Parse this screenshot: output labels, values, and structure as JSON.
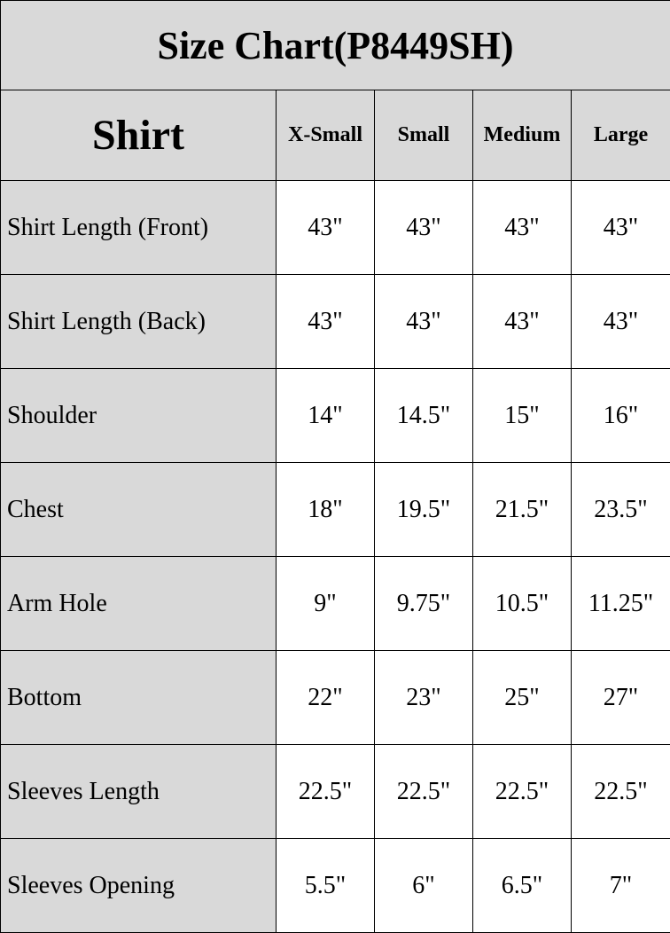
{
  "title": "Size Chart(P8449SH)",
  "header": {
    "category": "Shirt",
    "sizes": [
      "X-Small",
      "Small",
      "Medium",
      "Large"
    ]
  },
  "rows": [
    {
      "label": "Shirt Length (Front)",
      "values": [
        "43\"",
        "43\"",
        "43\"",
        "43\""
      ]
    },
    {
      "label": "Shirt Length (Back)",
      "values": [
        "43\"",
        "43\"",
        "43\"",
        "43\""
      ]
    },
    {
      "label": "Shoulder",
      "values": [
        "14\"",
        "14.5\"",
        "15\"",
        "16\""
      ]
    },
    {
      "label": "Chest",
      "values": [
        "18\"",
        "19.5\"",
        "21.5\"",
        "23.5\""
      ]
    },
    {
      "label": "Arm Hole",
      "values": [
        "9\"",
        "9.75\"",
        "10.5\"",
        "11.25\""
      ]
    },
    {
      "label": "Bottom",
      "values": [
        "22\"",
        "23\"",
        "25\"",
        "27\""
      ]
    },
    {
      "label": "Sleeves Length",
      "values": [
        "22.5\"",
        "22.5\"",
        "22.5\"",
        "22.5\""
      ]
    },
    {
      "label": "Sleeves Opening",
      "values": [
        "5.5\"",
        "6\"",
        "6.5\"",
        "7\""
      ]
    }
  ],
  "colors": {
    "header_bg": "#d9d9d9",
    "cell_bg": "#ffffff",
    "border": "#000000"
  }
}
